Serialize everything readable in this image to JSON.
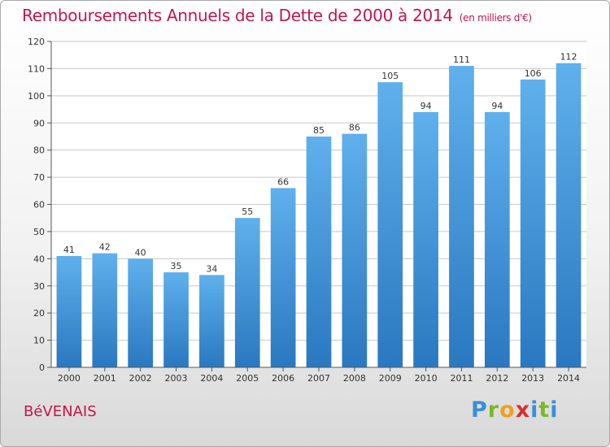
{
  "header": {
    "title": "Remboursements Annuels de la Dette de 2000 à 2014",
    "subtitle": "(en milliers d'€)"
  },
  "footer": {
    "commune": "BéVENAIS",
    "logo_letters": [
      "P",
      "r",
      "o",
      "x",
      "i",
      "t",
      "i"
    ]
  },
  "chart_data": {
    "type": "bar",
    "title": "Remboursements Annuels de la Dette de 2000 à 2014",
    "subtitle": "(en milliers d'€)",
    "categories": [
      "2000",
      "2001",
      "2002",
      "2003",
      "2004",
      "2005",
      "2006",
      "2007",
      "2008",
      "2009",
      "2010",
      "2011",
      "2012",
      "2013",
      "2014"
    ],
    "values": [
      41,
      42,
      40,
      35,
      34,
      55,
      66,
      85,
      86,
      105,
      94,
      111,
      94,
      106,
      112
    ],
    "ylim": [
      0,
      120
    ],
    "yticks": [
      0,
      10,
      20,
      30,
      40,
      50,
      60,
      70,
      80,
      90,
      100,
      110,
      120
    ],
    "grid": true,
    "bar_color": "#3d8fd6"
  }
}
